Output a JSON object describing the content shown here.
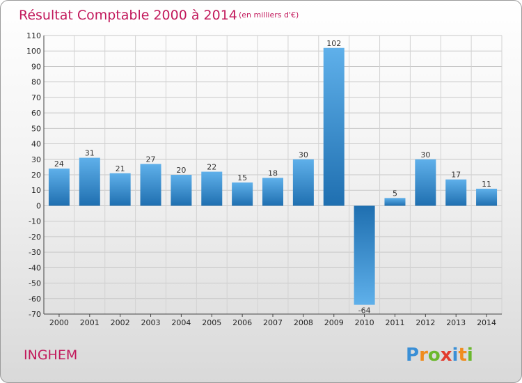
{
  "chart_data": {
    "type": "bar",
    "title": "Résultat Comptable 2000 à 2014",
    "subtitle": "(en milliers d'€)",
    "categories": [
      "2000",
      "2001",
      "2002",
      "2003",
      "2004",
      "2005",
      "2006",
      "2007",
      "2008",
      "2009",
      "2010",
      "2011",
      "2012",
      "2013",
      "2014"
    ],
    "values": [
      24,
      31,
      21,
      27,
      20,
      22,
      15,
      18,
      30,
      102,
      -64,
      5,
      30,
      17,
      11
    ],
    "data_labels": [
      "24",
      "31",
      "21",
      "27",
      "20",
      "22",
      "15",
      "18",
      "30",
      "102",
      "-64",
      "5",
      "30",
      "17",
      "11"
    ],
    "ylim": [
      -70,
      110
    ],
    "yticks": [
      110,
      100,
      90,
      80,
      70,
      60,
      50,
      40,
      30,
      20,
      10,
      0,
      -10,
      -20,
      -30,
      -40,
      -50,
      -60,
      -70
    ],
    "ytick_labels": [
      "110",
      "100",
      "90",
      "80",
      "70",
      "60",
      "50",
      "40",
      "30",
      "20",
      "10",
      "0",
      "-10",
      "-20",
      "-30",
      "-40",
      "-50",
      "-60",
      "-70"
    ],
    "grid": true,
    "xlabel": "",
    "ylabel": ""
  },
  "footer": {
    "commune": "INGHEM",
    "logo": [
      "P",
      "r",
      "o",
      "x",
      "i",
      "t",
      "i"
    ]
  },
  "colors": {
    "title": "#c2185b",
    "bar_light": "#5fb0ea",
    "bar_dark": "#1f6fb0",
    "logo_letters": [
      "#3a8fd6",
      "#f08c1e",
      "#6bb82d",
      "#e23b2e",
      "#3a8fd6",
      "#f08c1e",
      "#6bb82d"
    ]
  }
}
